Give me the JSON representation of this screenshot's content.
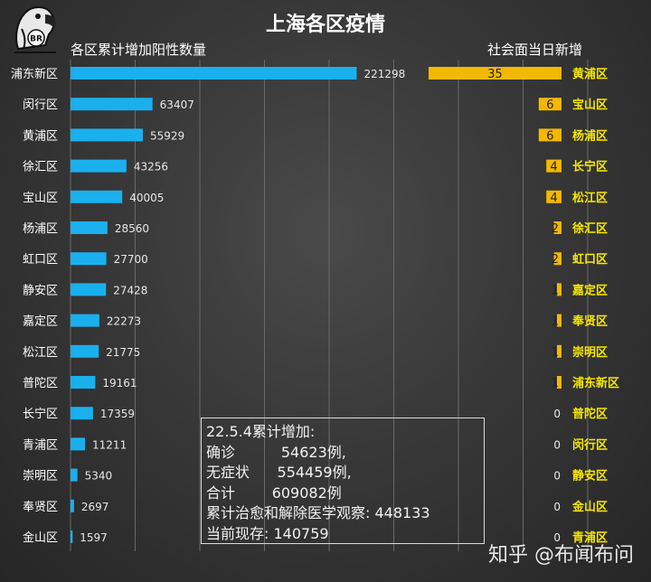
{
  "chart_data": [
    {
      "type": "bar",
      "title": "上海各区疫情",
      "subtitle": "各区累计增加阳性数量",
      "categories": [
        "浦东新区",
        "闵行区",
        "黄浦区",
        "徐汇区",
        "宝山区",
        "杨浦区",
        "虹口区",
        "静安区",
        "嘉定区",
        "松江区",
        "普陀区",
        "长宁区",
        "青浦区",
        "崇明区",
        "奉贤区",
        "金山区"
      ],
      "values": [
        221298,
        63407,
        55929,
        43256,
        40005,
        28560,
        27700,
        27428,
        22273,
        21775,
        19161,
        17359,
        11211,
        5340,
        2697,
        1597
      ],
      "xlim": [
        0,
        400000
      ],
      "grid": true,
      "color": "#1ab0ee"
    },
    {
      "type": "bar",
      "subtitle": "社会面当日新增",
      "categories": [
        "黄浦区",
        "宝山区",
        "杨浦区",
        "长宁区",
        "松江区",
        "徐汇区",
        "虹口区",
        "嘉定区",
        "奉贤区",
        "崇明区",
        "浦东新区",
        "普陀区",
        "闵行区",
        "静安区",
        "金山区",
        "青浦区"
      ],
      "values": [
        35,
        6,
        6,
        4,
        4,
        2,
        2,
        1,
        1,
        1,
        1,
        0,
        0,
        0,
        0,
        0
      ],
      "xlim": [
        0,
        35
      ],
      "color": "#f5b800",
      "label_color": "#f5e600"
    }
  ],
  "logo_text": "BR",
  "infobox": {
    "lines": [
      "22.5.4累计增加:",
      "确诊          54623例,",
      "无症状      554459例,",
      "合计        609082例",
      "累计治愈和解除医学观察: 448133",
      "当前现存: 140759"
    ]
  },
  "watermark": "知乎 @布闻布问"
}
